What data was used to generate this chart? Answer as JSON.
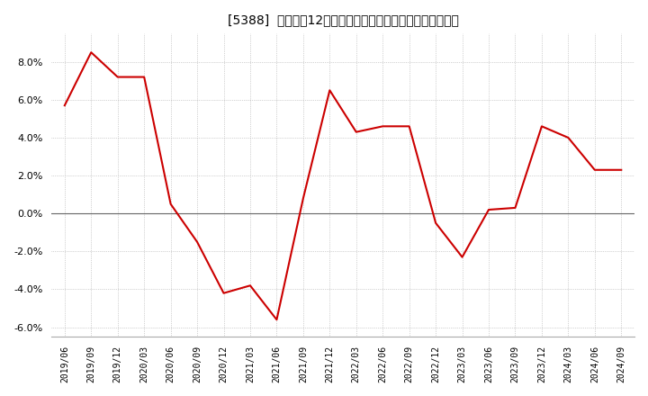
{
  "title": "[5388]  売上高の12か月移動合計の対前年同期増減率の推移",
  "line_color": "#cc0000",
  "background_color": "#ffffff",
  "grid_color": "#aaaaaa",
  "x_labels": [
    "2019/06",
    "2019/09",
    "2019/12",
    "2020/03",
    "2020/06",
    "2020/09",
    "2020/12",
    "2021/03",
    "2021/06",
    "2021/09",
    "2021/12",
    "2022/03",
    "2022/06",
    "2022/09",
    "2022/12",
    "2023/03",
    "2023/06",
    "2023/09",
    "2023/12",
    "2024/03",
    "2024/06",
    "2024/09"
  ],
  "values": [
    5.7,
    8.5,
    7.2,
    7.2,
    0.5,
    -1.5,
    -4.2,
    -3.8,
    -5.6,
    0.8,
    6.5,
    4.3,
    4.6,
    4.6,
    -0.5,
    -2.3,
    0.2,
    0.3,
    4.6,
    4.0,
    2.3,
    2.3
  ],
  "ylim": [
    -6.5,
    9.5
  ],
  "yticks": [
    -6.0,
    -4.0,
    -2.0,
    0.0,
    2.0,
    4.0,
    6.0,
    8.0
  ]
}
